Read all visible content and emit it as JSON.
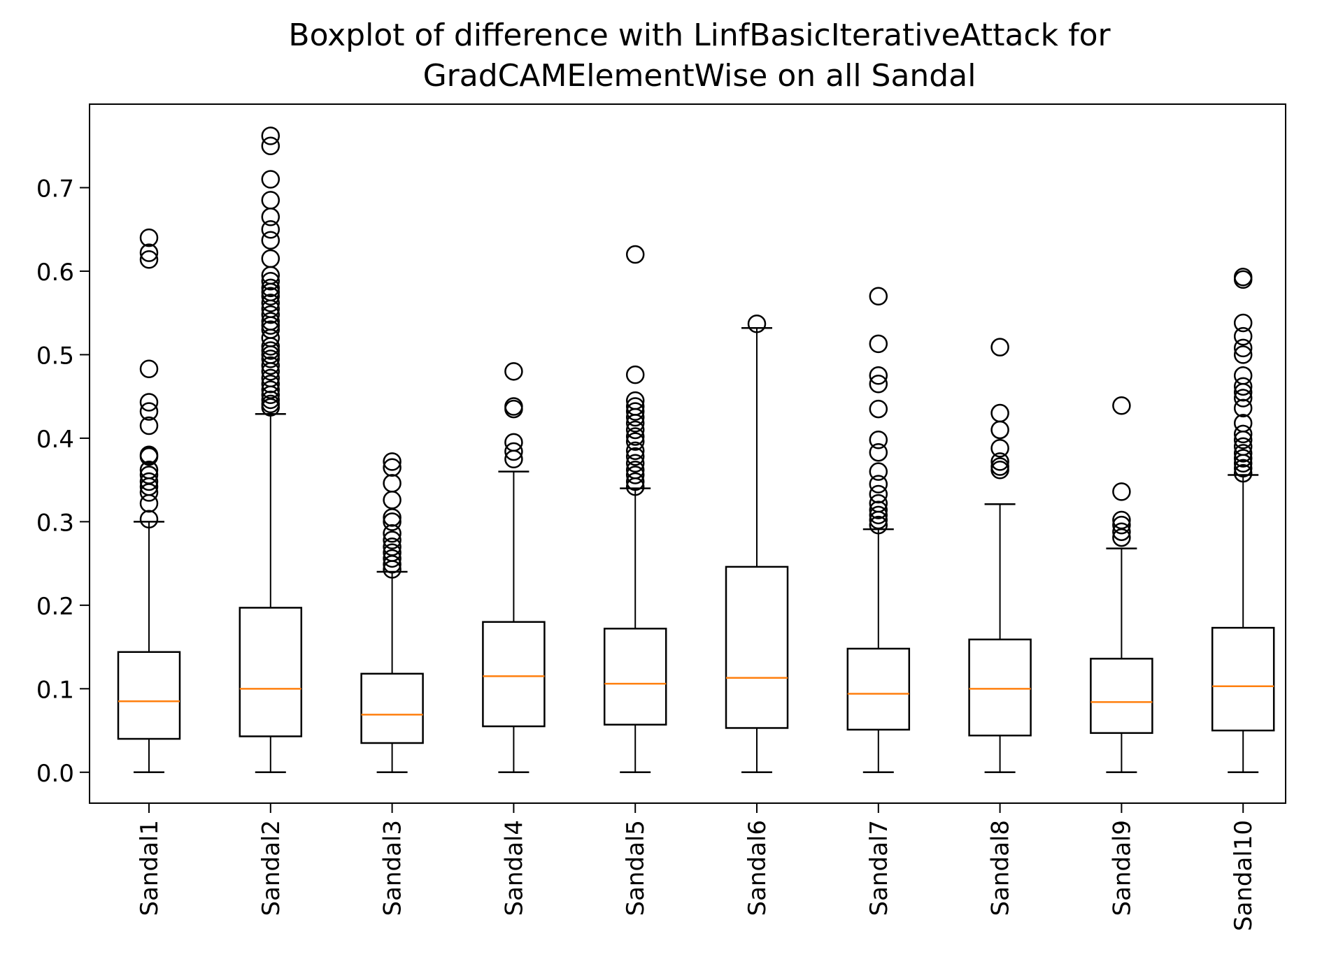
{
  "chart_data": {
    "type": "boxplot",
    "title": "Boxplot of difference with LinfBasicIterativeAttack for\nGradCAMElementWise on all Sandal",
    "xlabel": "",
    "ylabel": "",
    "ylim": [
      -0.037,
      0.8
    ],
    "yticks": [
      0.0,
      0.1,
      0.2,
      0.3,
      0.4,
      0.5,
      0.6,
      0.7
    ],
    "ytick_labels": [
      "0.0",
      "0.1",
      "0.2",
      "0.3",
      "0.4",
      "0.5",
      "0.6",
      "0.7"
    ],
    "grid": false,
    "colors": {
      "box": "#000000",
      "median": "#ff7f0e",
      "outlier": "#000000"
    },
    "boxes": [
      {
        "label": "Sandal1",
        "whislo": 0.0,
        "q1": 0.04,
        "med": 0.085,
        "q3": 0.144,
        "whishi": 0.3,
        "fliers": [
          0.303,
          0.322,
          0.335,
          0.342,
          0.348,
          0.356,
          0.362,
          0.378,
          0.38,
          0.415,
          0.432,
          0.443,
          0.483,
          0.614,
          0.622,
          0.64
        ]
      },
      {
        "label": "Sandal2",
        "whislo": 0.0,
        "q1": 0.043,
        "med": 0.1,
        "q3": 0.197,
        "whishi": 0.429,
        "fliers": [
          0.437,
          0.441,
          0.446,
          0.452,
          0.458,
          0.465,
          0.472,
          0.48,
          0.487,
          0.495,
          0.5,
          0.505,
          0.51,
          0.52,
          0.53,
          0.535,
          0.54,
          0.548,
          0.555,
          0.562,
          0.57,
          0.575,
          0.58,
          0.588,
          0.595,
          0.615,
          0.637,
          0.65,
          0.665,
          0.685,
          0.71,
          0.75,
          0.762
        ]
      },
      {
        "label": "Sandal3",
        "whislo": 0.0,
        "q1": 0.035,
        "med": 0.069,
        "q3": 0.118,
        "whishi": 0.24,
        "fliers": [
          0.243,
          0.249,
          0.256,
          0.263,
          0.27,
          0.278,
          0.286,
          0.3,
          0.305,
          0.326,
          0.346,
          0.365,
          0.372
        ]
      },
      {
        "label": "Sandal4",
        "whislo": 0.0,
        "q1": 0.055,
        "med": 0.115,
        "q3": 0.18,
        "whishi": 0.36,
        "fliers": [
          0.375,
          0.384,
          0.395,
          0.435,
          0.438,
          0.48
        ]
      },
      {
        "label": "Sandal5",
        "whislo": 0.0,
        "q1": 0.057,
        "med": 0.106,
        "q3": 0.172,
        "whishi": 0.34,
        "fliers": [
          0.342,
          0.348,
          0.356,
          0.362,
          0.37,
          0.378,
          0.385,
          0.396,
          0.402,
          0.41,
          0.418,
          0.425,
          0.432,
          0.438,
          0.445,
          0.476,
          0.62
        ]
      },
      {
        "label": "Sandal6",
        "whislo": 0.0,
        "q1": 0.053,
        "med": 0.113,
        "q3": 0.246,
        "whishi": 0.532,
        "fliers": [
          0.537
        ]
      },
      {
        "label": "Sandal7",
        "whislo": 0.0,
        "q1": 0.051,
        "med": 0.094,
        "q3": 0.148,
        "whishi": 0.291,
        "fliers": [
          0.296,
          0.302,
          0.308,
          0.314,
          0.322,
          0.333,
          0.345,
          0.36,
          0.383,
          0.398,
          0.435,
          0.465,
          0.475,
          0.513,
          0.57
        ]
      },
      {
        "label": "Sandal8",
        "whislo": 0.0,
        "q1": 0.044,
        "med": 0.1,
        "q3": 0.159,
        "whishi": 0.321,
        "fliers": [
          0.362,
          0.366,
          0.372,
          0.388,
          0.41,
          0.43,
          0.509
        ]
      },
      {
        "label": "Sandal9",
        "whislo": 0.0,
        "q1": 0.047,
        "med": 0.084,
        "q3": 0.136,
        "whishi": 0.268,
        "fliers": [
          0.281,
          0.288,
          0.296,
          0.302,
          0.336,
          0.439
        ]
      },
      {
        "label": "Sandal10",
        "whislo": 0.0,
        "q1": 0.05,
        "med": 0.103,
        "q3": 0.173,
        "whishi": 0.356,
        "fliers": [
          0.358,
          0.364,
          0.37,
          0.376,
          0.382,
          0.39,
          0.398,
          0.405,
          0.418,
          0.436,
          0.448,
          0.455,
          0.462,
          0.475,
          0.5,
          0.508,
          0.522,
          0.538,
          0.59,
          0.593
        ]
      }
    ]
  }
}
